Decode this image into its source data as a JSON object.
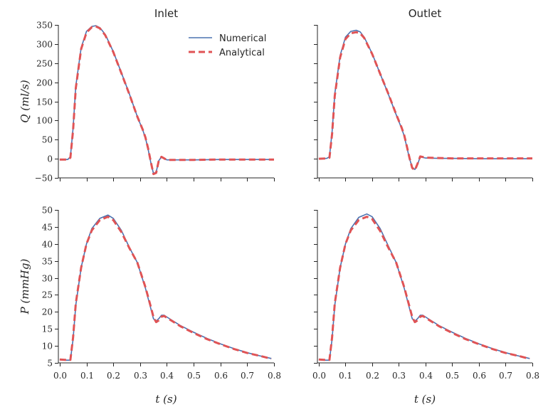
{
  "chart_data": [
    {
      "type": "line",
      "title": "Inlet",
      "xlabel": "",
      "ylabel": "Q (ml/s)",
      "xlim": [
        -0.005,
        0.8
      ],
      "ylim": [
        -50,
        350
      ],
      "xticks": [],
      "yticks": [
        "−50",
        "0",
        "50",
        "100",
        "150",
        "200",
        "250",
        "300",
        "350"
      ],
      "legend": {
        "position": "upper-right",
        "entries": [
          "Numerical",
          "Analytical"
        ]
      },
      "series": [
        {
          "name": "Numerical",
          "color": "#4c72b0",
          "style": "solid",
          "x": [
            0,
            0.03,
            0.04,
            0.05,
            0.06,
            0.08,
            0.1,
            0.12,
            0.135,
            0.15,
            0.17,
            0.2,
            0.23,
            0.26,
            0.29,
            0.31,
            0.32,
            0.33,
            0.34,
            0.35,
            0.36,
            0.37,
            0.38,
            0.4,
            0.45,
            0.5,
            0.6,
            0.7,
            0.8
          ],
          "y": [
            -2,
            -2,
            5,
            80,
            190,
            290,
            333,
            346,
            348,
            343,
            325,
            280,
            225,
            170,
            110,
            75,
            55,
            25,
            -10,
            -38,
            -35,
            -5,
            5,
            -3,
            -3,
            -3,
            -2,
            -2,
            -2
          ]
        },
        {
          "name": "Analytical",
          "color": "#e05355",
          "style": "dashed",
          "x": [
            0,
            0.03,
            0.04,
            0.05,
            0.06,
            0.08,
            0.1,
            0.12,
            0.135,
            0.15,
            0.17,
            0.2,
            0.23,
            0.26,
            0.29,
            0.31,
            0.32,
            0.33,
            0.34,
            0.35,
            0.36,
            0.37,
            0.38,
            0.4,
            0.45,
            0.5,
            0.6,
            0.7,
            0.8
          ],
          "y": [
            -2,
            -2,
            3,
            75,
            185,
            287,
            330,
            344,
            346,
            341,
            323,
            279,
            224,
            169,
            110,
            76,
            56,
            27,
            -8,
            -40,
            -37,
            -5,
            5,
            -3,
            -3,
            -3,
            -2,
            -2,
            -2
          ]
        }
      ]
    },
    {
      "type": "line",
      "title": "Outlet",
      "xlabel": "",
      "ylabel": "",
      "xlim": [
        -0.005,
        0.8
      ],
      "ylim": [
        -50,
        350
      ],
      "xticks": [],
      "yticks": [],
      "series": [
        {
          "name": "Numerical",
          "color": "#4c72b0",
          "style": "solid",
          "x": [
            0,
            0.03,
            0.04,
            0.05,
            0.06,
            0.08,
            0.1,
            0.12,
            0.14,
            0.155,
            0.17,
            0.2,
            0.23,
            0.26,
            0.29,
            0.31,
            0.32,
            0.33,
            0.34,
            0.35,
            0.36,
            0.37,
            0.38,
            0.4,
            0.45,
            0.5,
            0.6,
            0.7,
            0.8
          ],
          "y": [
            0,
            1,
            5,
            70,
            170,
            270,
            318,
            333,
            336,
            332,
            318,
            275,
            222,
            170,
            115,
            80,
            60,
            30,
            0,
            -22,
            -28,
            -15,
            5,
            2,
            1,
            1,
            0,
            0,
            0
          ]
        },
        {
          "name": "Analytical",
          "color": "#e05355",
          "style": "dashed",
          "x": [
            0,
            0.03,
            0.04,
            0.05,
            0.06,
            0.08,
            0.1,
            0.12,
            0.14,
            0.155,
            0.17,
            0.2,
            0.23,
            0.26,
            0.29,
            0.31,
            0.32,
            0.33,
            0.34,
            0.35,
            0.36,
            0.37,
            0.38,
            0.4,
            0.45,
            0.5,
            0.6,
            0.7,
            0.8
          ],
          "y": [
            0,
            1,
            3,
            65,
            165,
            265,
            313,
            328,
            331,
            328,
            316,
            274,
            222,
            171,
            116,
            82,
            62,
            32,
            2,
            -24,
            -30,
            -13,
            6,
            3,
            2,
            1,
            1,
            1,
            1
          ]
        }
      ]
    },
    {
      "type": "line",
      "title": "",
      "xlabel": "t (s)",
      "ylabel": "P (mmHg)",
      "xlim": [
        -0.005,
        0.8
      ],
      "ylim": [
        5,
        50
      ],
      "xticks": [
        "0.0",
        "0.1",
        "0.2",
        "0.3",
        "0.4",
        "0.5",
        "0.6",
        "0.7",
        "0.8"
      ],
      "yticks": [
        "5",
        "10",
        "15",
        "20",
        "25",
        "30",
        "35",
        "40",
        "45",
        "50"
      ],
      "series": [
        {
          "name": "Numerical",
          "color": "#4c72b0",
          "style": "solid",
          "x": [
            0,
            0.02,
            0.04,
            0.05,
            0.06,
            0.08,
            0.1,
            0.12,
            0.15,
            0.18,
            0.2,
            0.23,
            0.26,
            0.29,
            0.32,
            0.34,
            0.35,
            0.36,
            0.37,
            0.38,
            0.39,
            0.4,
            0.45,
            0.5,
            0.55,
            0.6,
            0.65,
            0.7,
            0.75,
            0.79
          ],
          "y": [
            6,
            5.8,
            5.8,
            12,
            22,
            33,
            40,
            44.5,
            47.5,
            48.5,
            47.5,
            44,
            39,
            34.5,
            27,
            21,
            18,
            17.3,
            18,
            19,
            19,
            18.5,
            16,
            14,
            12.2,
            10.6,
            9.2,
            8,
            7,
            6.3
          ]
        },
        {
          "name": "Analytical",
          "color": "#e05355",
          "style": "dashed",
          "x": [
            0,
            0.02,
            0.04,
            0.05,
            0.06,
            0.08,
            0.1,
            0.12,
            0.15,
            0.18,
            0.2,
            0.23,
            0.26,
            0.29,
            0.32,
            0.34,
            0.35,
            0.36,
            0.37,
            0.38,
            0.39,
            0.4,
            0.45,
            0.5,
            0.55,
            0.6,
            0.65,
            0.7,
            0.75,
            0.79
          ],
          "y": [
            6,
            5.9,
            5.9,
            12.5,
            22.5,
            33,
            40,
            44,
            47,
            48,
            47,
            43.5,
            38.8,
            34.5,
            27.3,
            21.5,
            18.5,
            17,
            17.5,
            18.6,
            18.8,
            18.3,
            15.8,
            13.8,
            12,
            10.5,
            9.1,
            7.9,
            7,
            6.2
          ]
        }
      ]
    },
    {
      "type": "line",
      "title": "",
      "xlabel": "t (s)",
      "ylabel": "",
      "xlim": [
        -0.005,
        0.8
      ],
      "ylim": [
        5,
        50
      ],
      "xticks": [
        "0.0",
        "0.1",
        "0.2",
        "0.3",
        "0.4",
        "0.5",
        "0.6",
        "0.7",
        "0.8"
      ],
      "yticks": [],
      "series": [
        {
          "name": "Numerical",
          "color": "#4c72b0",
          "style": "solid",
          "x": [
            0,
            0.02,
            0.04,
            0.05,
            0.06,
            0.08,
            0.1,
            0.12,
            0.15,
            0.18,
            0.2,
            0.23,
            0.26,
            0.29,
            0.32,
            0.34,
            0.35,
            0.36,
            0.37,
            0.38,
            0.39,
            0.4,
            0.45,
            0.5,
            0.55,
            0.6,
            0.65,
            0.7,
            0.75,
            0.79
          ],
          "y": [
            6,
            5.8,
            5.8,
            12,
            22,
            33,
            40,
            44.5,
            47.8,
            48.8,
            48,
            44.5,
            39.5,
            34.5,
            27,
            21,
            18,
            17.3,
            18,
            19,
            19,
            18.5,
            16,
            14,
            12.2,
            10.6,
            9.2,
            8,
            7,
            6.3
          ]
        },
        {
          "name": "Analytical",
          "color": "#e05355",
          "style": "dashed",
          "x": [
            0,
            0.02,
            0.04,
            0.05,
            0.06,
            0.08,
            0.1,
            0.12,
            0.15,
            0.18,
            0.2,
            0.23,
            0.26,
            0.29,
            0.32,
            0.34,
            0.35,
            0.36,
            0.37,
            0.38,
            0.39,
            0.4,
            0.45,
            0.5,
            0.55,
            0.6,
            0.65,
            0.7,
            0.75,
            0.79
          ],
          "y": [
            6,
            5.9,
            5.9,
            12.5,
            22.5,
            33,
            40,
            44,
            47,
            48,
            47.3,
            43.8,
            39,
            34.5,
            27.3,
            21.5,
            18.5,
            17,
            17.5,
            18.6,
            18.8,
            18.3,
            15.8,
            13.8,
            12,
            10.5,
            9.1,
            7.9,
            7,
            6.2
          ]
        }
      ]
    }
  ]
}
